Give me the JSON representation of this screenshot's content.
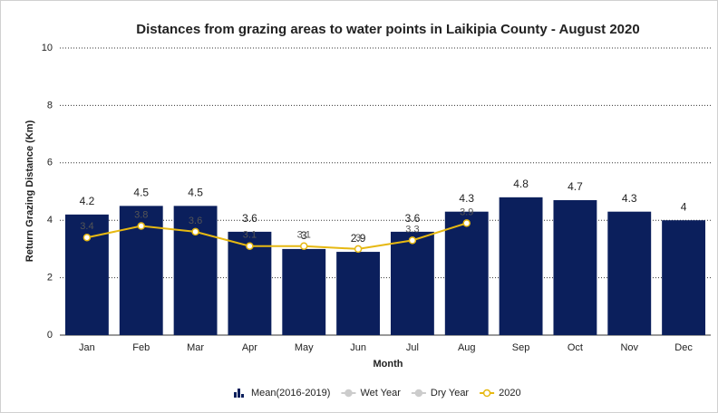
{
  "chart_data": {
    "type": "bar",
    "title": "Distances from grazing areas to water points in Laikipia County - August 2020",
    "x_label": "Month",
    "y_label": "Return Grazing Distance (Km)",
    "categories": [
      "Jan",
      "Feb",
      "Mar",
      "Apr",
      "May",
      "Jun",
      "Jul",
      "Aug",
      "Sep",
      "Oct",
      "Nov",
      "Dec"
    ],
    "series": [
      {
        "name": "Mean(2016-2019)",
        "type": "bar",
        "color": "#0b1f5c",
        "visible": true,
        "values": [
          4.2,
          4.5,
          4.5,
          3.6,
          3,
          2.9,
          3.6,
          4.3,
          4.8,
          4.7,
          4.3,
          4
        ]
      },
      {
        "name": "Wet Year",
        "type": "line",
        "color": "#cccccc",
        "visible": false,
        "values": [
          null,
          null,
          null,
          null,
          null,
          null,
          null,
          null,
          null,
          null,
          null,
          null
        ]
      },
      {
        "name": "Dry Year",
        "type": "line",
        "color": "#cccccc",
        "visible": false,
        "values": [
          null,
          null,
          null,
          null,
          null,
          null,
          null,
          null,
          null,
          null,
          null,
          null
        ]
      },
      {
        "name": "2020",
        "type": "line",
        "color": "#e6b812",
        "visible": true,
        "values": [
          3.4,
          3.8,
          3.6,
          3.1,
          3.1,
          3,
          3.3,
          3.9,
          null,
          null,
          null,
          null
        ]
      }
    ],
    "ylim": [
      0,
      10
    ],
    "yticks": [
      0,
      2,
      4,
      6,
      8,
      10
    ],
    "grid": true,
    "legend": "bottom"
  }
}
